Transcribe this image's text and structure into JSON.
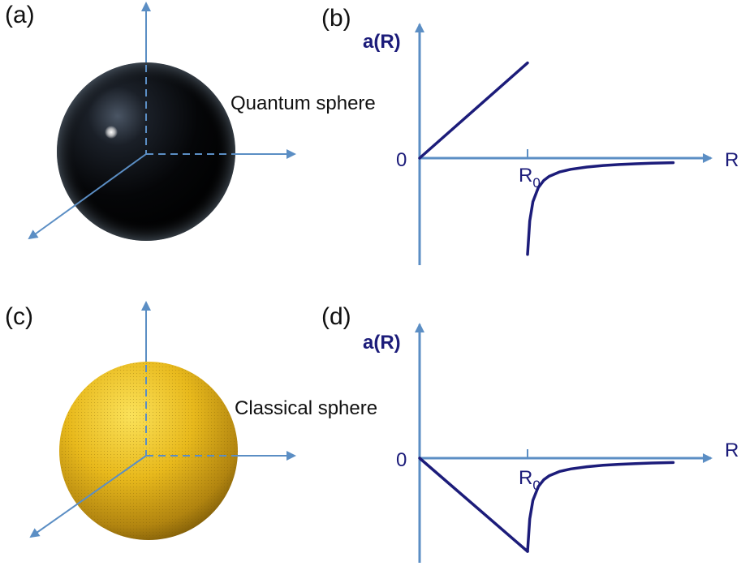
{
  "panel_labels": {
    "a": "(a)",
    "b": "(b)",
    "c": "(c)",
    "d": "(d)"
  },
  "quantum_sphere_label": "Quantum sphere",
  "classical_sphere_label": "Classical sphere",
  "colors": {
    "axis_arrow": "#5b8ec4",
    "curve": "#1c1c7a",
    "quantum_sphere": "#050505",
    "classical_sphere": "#e3b51c"
  },
  "chart_data": [
    {
      "type": "line",
      "panel": "(b)",
      "ylabel": "a(R)",
      "xlabel": "R",
      "origin_label": "0",
      "tick_label_base": "R",
      "tick_label_sub": "0",
      "x_range": [
        0,
        2.3
      ],
      "y_range": [
        -1.0,
        0.92
      ],
      "series": [
        {
          "x": [
            0,
            1
          ],
          "y": [
            0,
            0.9
          ]
        },
        {
          "x": [
            1,
            1.02,
            1.05,
            1.1,
            1.15,
            1.2,
            1.3,
            1.4,
            1.55,
            1.7,
            1.85,
            2.0,
            2.15,
            2.35
          ],
          "y": [
            -0.95,
            -0.62,
            -0.43,
            -0.29,
            -0.22,
            -0.18,
            -0.135,
            -0.11,
            -0.088,
            -0.073,
            -0.063,
            -0.056,
            -0.05,
            -0.045
          ]
        }
      ]
    },
    {
      "type": "line",
      "panel": "(d)",
      "ylabel": "a(R)",
      "xlabel": "R",
      "origin_label": "0",
      "tick_label_base": "R",
      "tick_label_sub": "0",
      "x_range": [
        0,
        2.3
      ],
      "y_range": [
        -1.0,
        1.2
      ],
      "series": [
        {
          "x": [
            0,
            1
          ],
          "y": [
            0,
            -0.95
          ]
        },
        {
          "x": [
            1,
            1.02,
            1.05,
            1.1,
            1.15,
            1.2,
            1.3,
            1.4,
            1.55,
            1.7,
            1.85,
            2.0,
            2.15,
            2.35
          ],
          "y": [
            -0.95,
            -0.62,
            -0.43,
            -0.29,
            -0.22,
            -0.18,
            -0.135,
            -0.11,
            -0.088,
            -0.073,
            -0.063,
            -0.056,
            -0.05,
            -0.045
          ]
        }
      ]
    }
  ]
}
